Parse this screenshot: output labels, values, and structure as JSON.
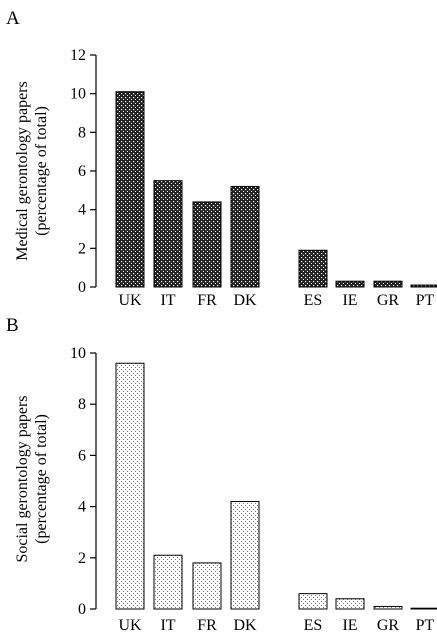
{
  "colors": {
    "medical_fill": "#222222",
    "social_fill": "#ffffff",
    "stroke": "#000000"
  },
  "chart_data": [
    {
      "panel": "A",
      "type": "bar",
      "ylabel_line1": "Medical gerontology papers",
      "ylabel_line2": "(percentage of total)",
      "categories": [
        "UK",
        "IT",
        "FR",
        "DK",
        "ES",
        "IE",
        "GR",
        "PT"
      ],
      "values": [
        10.1,
        5.5,
        4.4,
        5.2,
        1.9,
        0.3,
        0.3,
        0.1
      ],
      "yticks": [
        "0",
        "2",
        "4",
        "6",
        "8",
        "10",
        "12"
      ],
      "ylim": [
        0,
        12
      ],
      "pattern": "dense crosshatch"
    },
    {
      "panel": "B",
      "type": "bar",
      "ylabel_line1": "Social gerontology papers",
      "ylabel_line2": "(percentage of total)",
      "categories": [
        "UK",
        "IT",
        "FR",
        "DK",
        "ES",
        "IE",
        "GR",
        "PT"
      ],
      "values": [
        9.6,
        2.1,
        1.8,
        4.2,
        0.6,
        0.4,
        0.1,
        0.0
      ],
      "yticks": [
        "0",
        "2",
        "4",
        "6",
        "8",
        "10"
      ],
      "ylim": [
        0,
        10
      ],
      "pattern": "sparse dots"
    }
  ]
}
